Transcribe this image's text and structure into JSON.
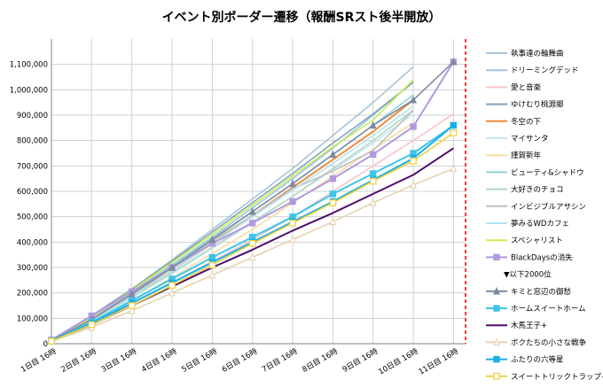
{
  "chart_data": {
    "type": "line",
    "title": "イベント別ボーダー遷移（報酬SRスト後半開放）",
    "ylim": [
      0,
      1200000
    ],
    "yticks": [
      "0",
      "100,000",
      "200,000",
      "300,000",
      "400,000",
      "500,000",
      "600,000",
      "700,000",
      "800,000",
      "900,000",
      "1,000,000",
      "1,100,000"
    ],
    "yvalues": [
      0,
      100000,
      200000,
      300000,
      400000,
      500000,
      600000,
      700000,
      800000,
      900000,
      1000000,
      1100000
    ],
    "xticks": [
      "1日目 16時",
      "2日目 16時",
      "3日目 16時",
      "4日目 16時",
      "5日目 16時",
      "6日目 16時",
      "7日目 16時",
      "8日目 16時",
      "9日目 16時",
      "10日目 16時",
      "11日目 16時"
    ],
    "xlim": [
      0,
      10.3
    ],
    "grid": true,
    "legend_position": "right",
    "end_marker_x": 10.3,
    "end_marker_color": "#e00000",
    "legend_divider": "▼以下2000位",
    "series": [
      {
        "name": "執事達の輪舞曲",
        "color": "#a9c4d8",
        "marker": "none",
        "points": [
          [
            0,
            15000
          ],
          [
            1,
            110000
          ],
          [
            2,
            215000
          ],
          [
            3,
            330000
          ],
          [
            4,
            450000
          ],
          [
            5,
            570000
          ],
          [
            6,
            690000
          ],
          [
            7,
            820000
          ],
          [
            8,
            950000
          ],
          [
            9,
            1090000
          ]
        ]
      },
      {
        "name": "ドリーミングデッド",
        "color": "#9dc3e6",
        "marker": "none",
        "points": [
          [
            0,
            14000
          ],
          [
            1,
            105000
          ],
          [
            2,
            205000
          ],
          [
            3,
            310000
          ],
          [
            4,
            420000
          ],
          [
            5,
            535000
          ],
          [
            6,
            650000
          ],
          [
            7,
            770000
          ],
          [
            8,
            900000
          ],
          [
            9,
            1030000
          ]
        ]
      },
      {
        "name": "愛と音楽",
        "color": "#f7c6c6",
        "marker": "none",
        "points": [
          [
            0,
            10000
          ],
          [
            1,
            80000
          ],
          [
            2,
            160000
          ],
          [
            3,
            240000
          ],
          [
            4,
            325000
          ],
          [
            5,
            410000
          ],
          [
            6,
            500000
          ],
          [
            7,
            600000
          ],
          [
            8,
            700000
          ],
          [
            9,
            800000
          ],
          [
            10,
            905000
          ]
        ]
      },
      {
        "name": "ゆけむり桃源郷",
        "color": "#7fa3bc",
        "marker": "none",
        "points": [
          [
            0,
            14000
          ],
          [
            1,
            110000
          ],
          [
            2,
            215000
          ],
          [
            3,
            325000
          ],
          [
            4,
            440000
          ],
          [
            5,
            555000
          ],
          [
            6,
            670000
          ],
          [
            7,
            790000
          ],
          [
            8,
            905000
          ],
          [
            9,
            1030000
          ]
        ]
      },
      {
        "name": "冬空の下",
        "color": "#f08b3a",
        "marker": "none",
        "points": [
          [
            0,
            12000
          ],
          [
            1,
            95000
          ],
          [
            2,
            190000
          ],
          [
            3,
            290000
          ],
          [
            4,
            395000
          ],
          [
            5,
            505000
          ],
          [
            6,
            615000
          ],
          [
            7,
            725000
          ],
          [
            8,
            835000
          ],
          [
            9,
            960000
          ]
        ]
      },
      {
        "name": "マイサンタ",
        "color": "#c4e8f0",
        "marker": "none",
        "points": [
          [
            0,
            11000
          ],
          [
            1,
            90000
          ],
          [
            2,
            180000
          ],
          [
            3,
            275000
          ],
          [
            4,
            375000
          ],
          [
            5,
            475000
          ],
          [
            6,
            580000
          ],
          [
            7,
            685000
          ],
          [
            8,
            790000
          ],
          [
            9,
            905000
          ]
        ]
      },
      {
        "name": "謹賀新年",
        "color": "#f6dca0",
        "marker": "none",
        "points": [
          [
            0,
            10000
          ],
          [
            1,
            85000
          ],
          [
            2,
            170000
          ],
          [
            3,
            260000
          ],
          [
            4,
            355000
          ],
          [
            5,
            450000
          ],
          [
            6,
            555000
          ],
          [
            7,
            660000
          ],
          [
            8,
            765000
          ],
          [
            9,
            870000
          ]
        ]
      },
      {
        "name": "ビューティ&シャドウ",
        "color": "#8fd6d0",
        "marker": "none",
        "points": [
          [
            0,
            13000
          ],
          [
            1,
            100000
          ],
          [
            2,
            200000
          ],
          [
            3,
            305000
          ],
          [
            4,
            415000
          ],
          [
            5,
            520000
          ],
          [
            6,
            630000
          ],
          [
            7,
            745000
          ],
          [
            8,
            860000
          ],
          [
            9,
            980000
          ]
        ]
      },
      {
        "name": "大好きのチョコ",
        "color": "#b4d8c4",
        "marker": "none",
        "points": [
          [
            0,
            12000
          ],
          [
            1,
            95000
          ],
          [
            2,
            185000
          ],
          [
            3,
            280000
          ],
          [
            4,
            380000
          ],
          [
            5,
            480000
          ],
          [
            6,
            580000
          ],
          [
            7,
            690000
          ],
          [
            8,
            800000
          ],
          [
            9,
            920000
          ]
        ]
      },
      {
        "name": "インビジブルアサシン",
        "color": "#c0c0c0",
        "marker": "none",
        "points": [
          [
            0,
            13000
          ],
          [
            1,
            100000
          ],
          [
            2,
            200000
          ],
          [
            3,
            300000
          ],
          [
            4,
            405000
          ],
          [
            5,
            505000
          ],
          [
            6,
            610000
          ],
          [
            7,
            680000
          ],
          [
            8,
            760000
          ],
          [
            9,
            920000
          ]
        ]
      },
      {
        "name": "夢みるWDカフェ",
        "color": "#b0e4f4",
        "marker": "none",
        "points": [
          [
            0,
            12000
          ],
          [
            1,
            95000
          ],
          [
            2,
            190000
          ],
          [
            3,
            290000
          ],
          [
            4,
            395000
          ],
          [
            5,
            500000
          ],
          [
            6,
            605000
          ],
          [
            7,
            710000
          ],
          [
            8,
            820000
          ],
          [
            9,
            935000
          ]
        ]
      },
      {
        "name": "スペシャリスト",
        "color": "#c8ee52",
        "marker": "none",
        "points": [
          [
            0,
            14000
          ],
          [
            1,
            105000
          ],
          [
            2,
            210000
          ],
          [
            3,
            320000
          ],
          [
            4,
            430000
          ],
          [
            5,
            545000
          ],
          [
            6,
            660000
          ],
          [
            7,
            775000
          ],
          [
            8,
            880000
          ],
          [
            9,
            1040000
          ]
        ]
      },
      {
        "name": "BlackDaysの消失",
        "color": "#b19ae0",
        "marker": "square",
        "points": [
          [
            0,
            15000
          ],
          [
            1,
            110000
          ],
          [
            2,
            205000
          ],
          [
            3,
            300000
          ],
          [
            4,
            395000
          ],
          [
            5,
            475000
          ],
          [
            6,
            560000
          ],
          [
            7,
            650000
          ],
          [
            8,
            745000
          ],
          [
            9,
            855000
          ],
          [
            10,
            1110000
          ]
        ]
      },
      {
        "name": "キミと窓辺の御愁",
        "color": "#7e8aa0",
        "marker": "triangle",
        "points": [
          [
            0,
            13000
          ],
          [
            1,
            95000
          ],
          [
            2,
            195000
          ],
          [
            3,
            300000
          ],
          [
            4,
            410000
          ],
          [
            5,
            520000
          ],
          [
            6,
            630000
          ],
          [
            7,
            745000
          ],
          [
            8,
            860000
          ],
          [
            9,
            960000
          ],
          [
            10,
            1110000
          ]
        ]
      },
      {
        "name": "ホームスイートホーム",
        "color": "#3ec4ea",
        "marker": "square",
        "points": [
          [
            0,
            12000
          ],
          [
            1,
            85000
          ],
          [
            2,
            170000
          ],
          [
            3,
            255000
          ],
          [
            4,
            340000
          ],
          [
            5,
            420000
          ],
          [
            6,
            500000
          ],
          [
            7,
            590000
          ],
          [
            8,
            670000
          ],
          [
            9,
            750000
          ],
          [
            10,
            860000
          ]
        ]
      },
      {
        "name": "木馬王子+",
        "color": "#4b0f6e",
        "marker": "none",
        "points": [
          [
            0,
            10000
          ],
          [
            1,
            75000
          ],
          [
            2,
            150000
          ],
          [
            3,
            225000
          ],
          [
            4,
            300000
          ],
          [
            5,
            370000
          ],
          [
            6,
            445000
          ],
          [
            7,
            515000
          ],
          [
            8,
            590000
          ],
          [
            9,
            665000
          ],
          [
            10,
            770000
          ]
        ]
      },
      {
        "name": "ボクたちの小さな戦争",
        "color": "#e6d2b0",
        "marker": "triangle-open",
        "points": [
          [
            0,
            9000
          ],
          [
            1,
            65000
          ],
          [
            2,
            130000
          ],
          [
            3,
            200000
          ],
          [
            4,
            270000
          ],
          [
            5,
            340000
          ],
          [
            6,
            410000
          ],
          [
            7,
            480000
          ],
          [
            8,
            555000
          ],
          [
            9,
            625000
          ],
          [
            10,
            690000
          ]
        ]
      },
      {
        "name": "ふたりの六等星",
        "color": "#1ab0e6",
        "marker": "square",
        "points": [
          [
            0,
            11000
          ],
          [
            1,
            80000
          ],
          [
            2,
            160000
          ],
          [
            3,
            240000
          ],
          [
            4,
            320000
          ],
          [
            5,
            400000
          ],
          [
            6,
            480000
          ],
          [
            7,
            560000
          ],
          [
            8,
            645000
          ],
          [
            9,
            730000
          ],
          [
            10,
            860000
          ]
        ]
      },
      {
        "name": "スイートトリックトラップ+",
        "color": "#f0d040",
        "marker": "square-open",
        "points": [
          [
            0,
            10000
          ],
          [
            1,
            75000
          ],
          [
            2,
            150000
          ],
          [
            3,
            230000
          ],
          [
            4,
            310000
          ],
          [
            5,
            395000
          ],
          [
            6,
            475000
          ],
          [
            7,
            555000
          ],
          [
            8,
            640000
          ],
          [
            9,
            720000
          ],
          [
            10,
            830000
          ]
        ]
      }
    ]
  }
}
